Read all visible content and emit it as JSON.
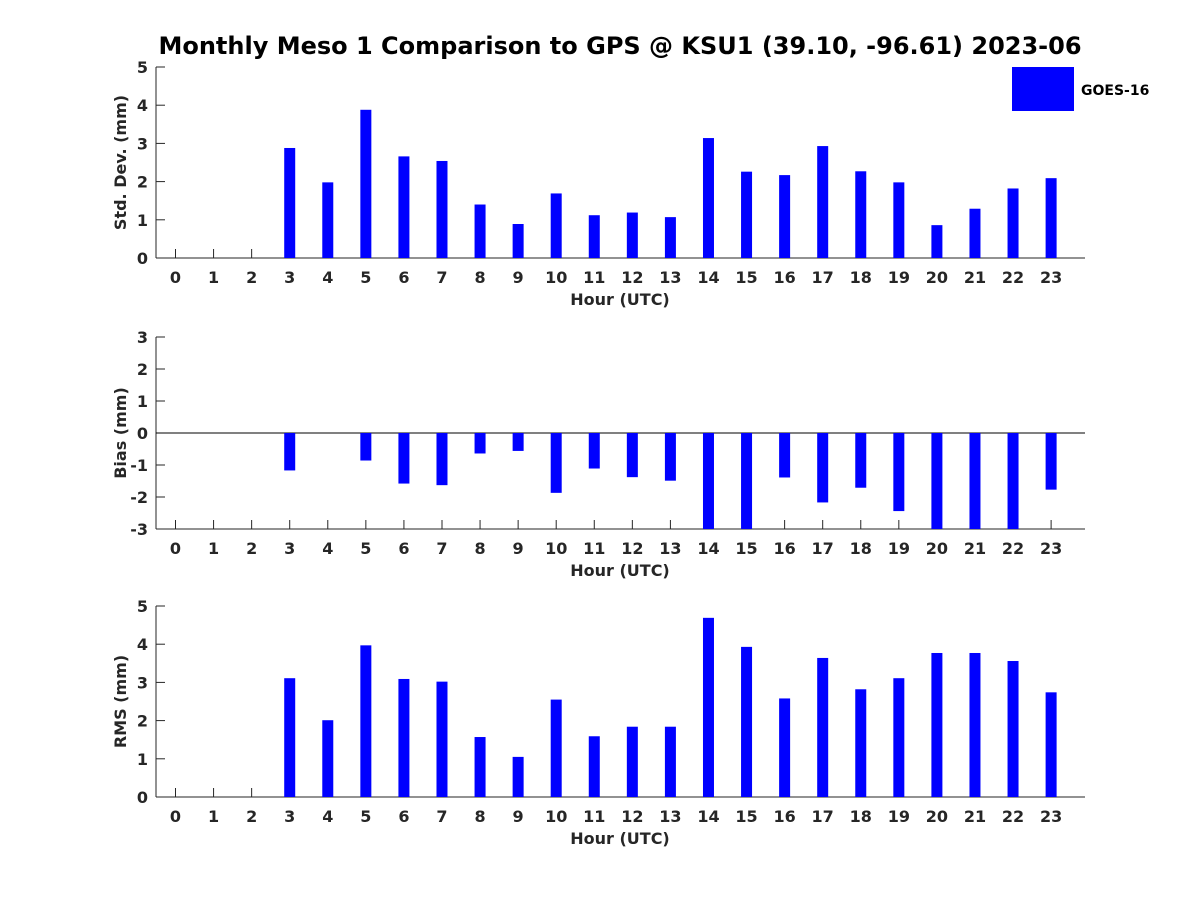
{
  "chart_data": {
    "title": "Monthly Meso 1 Comparison to GPS @ KSU1 (39.10, -96.61) 2023-06",
    "legend": {
      "label": "GOES-16",
      "color": "#0000ff",
      "placement": "top-right"
    },
    "panels": [
      {
        "type": "bar",
        "ylabel": "Std. Dev. (mm)",
        "xlabel": "Hour (UTC)",
        "ylim": [
          0,
          5
        ],
        "yticks": [
          0,
          1,
          2,
          3,
          4,
          5
        ],
        "categories": [
          "0",
          "1",
          "2",
          "3",
          "4",
          "5",
          "6",
          "7",
          "8",
          "9",
          "10",
          "11",
          "12",
          "13",
          "14",
          "15",
          "16",
          "17",
          "18",
          "19",
          "20",
          "21",
          "22",
          "23"
        ],
        "values": [
          null,
          null,
          null,
          2.88,
          1.98,
          3.88,
          2.66,
          2.54,
          1.4,
          0.89,
          1.69,
          1.12,
          1.19,
          1.07,
          3.14,
          2.26,
          2.17,
          2.93,
          2.27,
          1.98,
          0.86,
          1.29,
          1.82,
          2.09
        ]
      },
      {
        "type": "bar",
        "ylabel": "Bias (mm)",
        "xlabel": "Hour (UTC)",
        "ylim": [
          -3,
          3
        ],
        "yticks": [
          -3,
          -2,
          -1,
          0,
          1,
          2,
          3
        ],
        "zero_line": true,
        "categories": [
          "0",
          "1",
          "2",
          "3",
          "4",
          "5",
          "6",
          "7",
          "8",
          "9",
          "10",
          "11",
          "12",
          "13",
          "14",
          "15",
          "16",
          "17",
          "18",
          "19",
          "20",
          "21",
          "22",
          "23"
        ],
        "values": [
          null,
          null,
          null,
          -1.17,
          null,
          -0.86,
          -1.58,
          -1.63,
          -0.64,
          -0.56,
          -1.87,
          -1.11,
          -1.38,
          -1.49,
          -3.0,
          -3.0,
          -1.39,
          -2.17,
          -1.71,
          -2.44,
          -3.0,
          -3.0,
          -3.0,
          -1.77
        ]
      },
      {
        "type": "bar",
        "ylabel": "RMS (mm)",
        "xlabel": "Hour (UTC)",
        "ylim": [
          0,
          5
        ],
        "yticks": [
          0,
          1,
          2,
          3,
          4,
          5
        ],
        "categories": [
          "0",
          "1",
          "2",
          "3",
          "4",
          "5",
          "6",
          "7",
          "8",
          "9",
          "10",
          "11",
          "12",
          "13",
          "14",
          "15",
          "16",
          "17",
          "18",
          "19",
          "20",
          "21",
          "22",
          "23"
        ],
        "values": [
          null,
          null,
          null,
          3.11,
          2.01,
          3.97,
          3.09,
          3.02,
          1.57,
          1.05,
          2.55,
          1.59,
          1.84,
          1.84,
          4.69,
          3.93,
          2.58,
          3.64,
          2.82,
          3.11,
          3.77,
          3.77,
          3.56,
          2.74
        ]
      }
    ]
  }
}
